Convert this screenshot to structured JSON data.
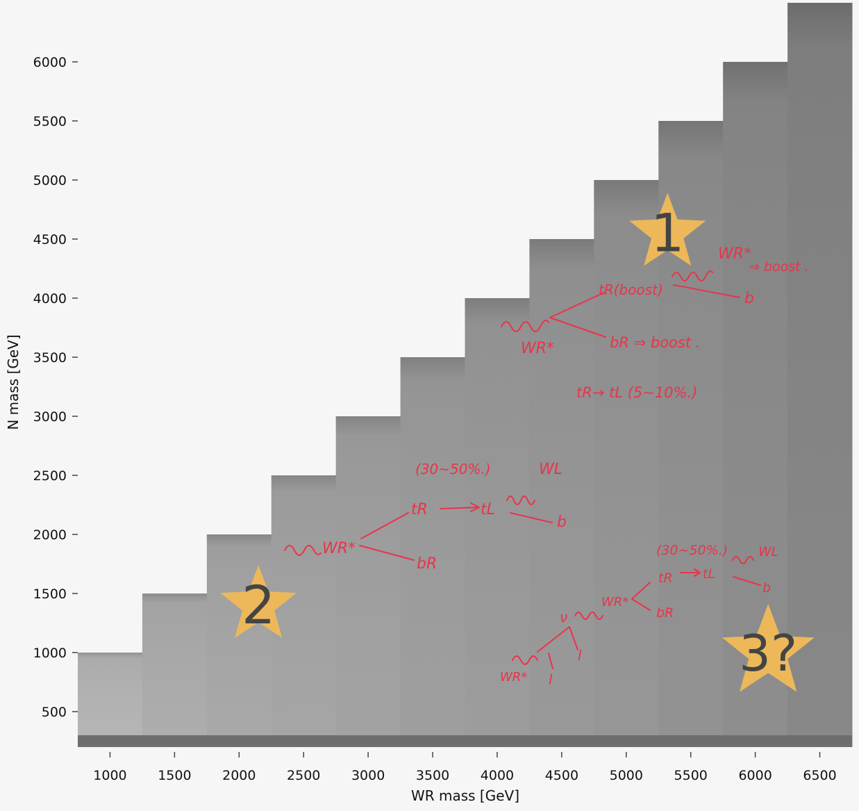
{
  "chart_data": {
    "type": "heatmap",
    "xlabel": "WR mass [GeV]",
    "ylabel": "N mass [GeV]",
    "x_ticks": [
      1000,
      1500,
      2000,
      2500,
      3000,
      3500,
      4000,
      4500,
      5000,
      5500,
      6000,
      6500
    ],
    "y_ticks": [
      500,
      1000,
      1500,
      2000,
      2500,
      3000,
      3500,
      4000,
      4500,
      5000,
      5500,
      6000
    ],
    "xlim": [
      750,
      6750
    ],
    "ylim": [
      200,
      6500
    ],
    "colormap": "greyscale",
    "columns": [
      {
        "wr_mass": 1000,
        "n_max": 1000,
        "shade": "#b4b4b4"
      },
      {
        "wr_mass": 1500,
        "n_max": 1500,
        "shade": "#ababab"
      },
      {
        "wr_mass": 2000,
        "n_max": 2000,
        "shade": "#a6a6a6"
      },
      {
        "wr_mass": 2500,
        "n_max": 2500,
        "shade": "#a3a3a3"
      },
      {
        "wr_mass": 3000,
        "n_max": 3000,
        "shade": "#a0a0a0"
      },
      {
        "wr_mass": 3500,
        "n_max": 3500,
        "shade": "#9c9c9c"
      },
      {
        "wr_mass": 4000,
        "n_max": 4000,
        "shade": "#999999"
      },
      {
        "wr_mass": 4500,
        "n_max": 4500,
        "shade": "#969696"
      },
      {
        "wr_mass": 5000,
        "n_max": 5000,
        "shade": "#939393"
      },
      {
        "wr_mass": 5500,
        "n_max": 5500,
        "shade": "#8f8f8f"
      },
      {
        "wr_mass": 6000,
        "n_max": 6000,
        "shade": "#8a8a8a"
      },
      {
        "wr_mass": 6500,
        "n_max": 6500,
        "shade": "#848484"
      }
    ],
    "low_band": {
      "n_min": 200,
      "n_max": 300,
      "shade": "#6e6e6e"
    },
    "stars": [
      {
        "label": "1",
        "wr_mass": 5320,
        "n_mass": 4550
      },
      {
        "label": "2",
        "wr_mass": 2150,
        "n_mass": 1400
      },
      {
        "label": "3?",
        "wr_mass": 6100,
        "n_mass": 1000
      }
    ],
    "annotations": {
      "diagram1": {
        "wr_star": "WR*",
        "tr_boost": "tR(boost)",
        "br_boost": "bR ⇒ boost .",
        "wr_star2": "WR*",
        "boost": "⇒ boost .",
        "b": "b",
        "tr_tl": "tR→ tL (5~10%.)"
      },
      "diagram2": {
        "wr_star": "WR*",
        "percent": "(30~50%.)",
        "tr": "tR",
        "tl": "tL",
        "wl": "WL",
        "b": "b",
        "br": "bR"
      },
      "diagram3": {
        "wr_star": "WR*",
        "l1": "l",
        "l2": "l",
        "nu": "ν",
        "wr_star2": "WR*",
        "percent": "(30~50%.)",
        "tr": "tR",
        "tl": "tL",
        "wl": "WL",
        "b": "b",
        "br": "bR"
      }
    }
  },
  "star_color": "#ecb85a",
  "annotation_color": "#e8344a"
}
